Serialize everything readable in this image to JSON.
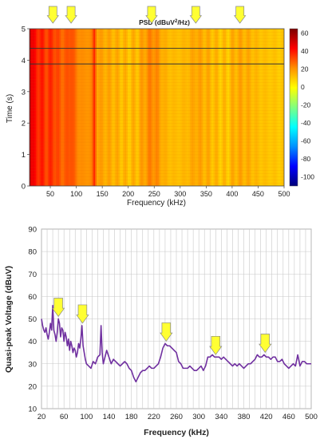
{
  "chart_data": [
    {
      "type": "heatmap",
      "title": "PSD (dBuV²/Hz)",
      "title_main": "PSD (dBuV",
      "title_sup": "2",
      "title_tail": "/Hz)",
      "xlabel": "Frequency (kHz)",
      "ylabel": "Time (s)",
      "xlim": [
        10,
        500
      ],
      "ylim": [
        0,
        5
      ],
      "x_ticks": [
        50,
        100,
        150,
        200,
        250,
        300,
        350,
        400,
        450,
        500
      ],
      "y_ticks": [
        0,
        1,
        2,
        3,
        4,
        5
      ],
      "colorbar": {
        "range": [
          -110,
          65
        ],
        "ticks": [
          60,
          40,
          20,
          0,
          -20,
          -40,
          -60,
          -80,
          -100
        ],
        "colors": [
          "#00007a",
          "#0000ff",
          "#0090ff",
          "#00ffff",
          "#80ff80",
          "#ffff00",
          "#ff9000",
          "#ff0000",
          "#7a0000"
        ]
      },
      "horizontal_lines": [
        4.38,
        3.88
      ],
      "arrows_x": [
        55,
        90,
        245,
        330,
        415
      ],
      "spectrum_profile_x": [
        10,
        15,
        20,
        30,
        45,
        55,
        65,
        80,
        90,
        100,
        115,
        130,
        135,
        140,
        160,
        180,
        200,
        220,
        235,
        245,
        255,
        270,
        290,
        310,
        330,
        350,
        370,
        390,
        410,
        430,
        450,
        470,
        500
      ],
      "spectrum_profile_level": [
        60,
        45,
        40,
        38,
        34,
        36,
        30,
        28,
        33,
        24,
        20,
        22,
        38,
        18,
        16,
        14,
        12,
        14,
        20,
        23,
        21,
        14,
        12,
        13,
        17,
        15,
        12,
        11,
        16,
        15,
        12,
        11,
        10
      ]
    },
    {
      "type": "line",
      "xlabel": "Frequency (kHz)",
      "ylabel": "Quasi-peak Voltage (dBuV)",
      "xlim": [
        20,
        500
      ],
      "ylim": [
        10,
        90
      ],
      "x_ticks": [
        20,
        60,
        100,
        140,
        180,
        220,
        260,
        300,
        340,
        380,
        420,
        460,
        500
      ],
      "y_ticks": [
        10,
        20,
        30,
        40,
        50,
        60,
        70,
        80,
        90
      ],
      "arrows_x": [
        50,
        93,
        242,
        330,
        418
      ],
      "series": [
        {
          "color": "#7030a0",
          "x": [
            20,
            22,
            24,
            26,
            28,
            30,
            32,
            34,
            36,
            38,
            40,
            42,
            44,
            46,
            48,
            50,
            52,
            54,
            56,
            58,
            60,
            62,
            64,
            66,
            68,
            70,
            72,
            74,
            76,
            78,
            80,
            82,
            84,
            86,
            88,
            90,
            92,
            94,
            96,
            98,
            100,
            104,
            108,
            112,
            116,
            120,
            124,
            126,
            128,
            130,
            132,
            136,
            140,
            144,
            148,
            152,
            156,
            160,
            164,
            168,
            172,
            176,
            180,
            184,
            188,
            192,
            196,
            200,
            204,
            208,
            212,
            216,
            220,
            224,
            228,
            232,
            236,
            240,
            244,
            248,
            252,
            256,
            260,
            264,
            268,
            272,
            276,
            280,
            284,
            288,
            292,
            296,
            300,
            304,
            308,
            312,
            316,
            320,
            324,
            328,
            332,
            336,
            340,
            344,
            348,
            352,
            356,
            360,
            364,
            368,
            372,
            376,
            380,
            384,
            388,
            392,
            396,
            400,
            404,
            408,
            412,
            416,
            420,
            424,
            428,
            432,
            436,
            440,
            444,
            448,
            452,
            456,
            460,
            464,
            468,
            472,
            476,
            480,
            484,
            488,
            492,
            496,
            500
          ],
          "y": [
            50,
            47,
            45,
            44,
            46,
            43,
            41,
            44,
            48,
            45,
            56,
            45,
            43,
            40,
            44,
            50,
            48,
            42,
            46,
            45,
            40,
            44,
            42,
            38,
            41,
            36,
            40,
            38,
            35,
            37,
            36,
            33,
            35,
            39,
            37,
            41,
            47,
            38,
            35,
            32,
            30,
            29,
            28,
            31,
            30,
            33,
            34,
            47,
            35,
            30,
            32,
            36,
            33,
            30,
            32,
            31,
            30,
            29,
            30,
            31,
            30,
            28,
            27,
            24,
            22,
            24,
            26,
            27,
            27,
            28,
            29,
            28,
            28,
            29,
            30,
            33,
            37,
            39,
            38,
            38,
            37,
            36,
            35,
            31,
            30,
            28,
            28,
            28,
            29,
            28,
            27,
            27,
            28,
            29,
            27,
            29,
            33,
            33,
            34,
            33,
            33,
            33,
            32,
            33,
            32,
            31,
            30,
            29,
            30,
            29,
            30,
            29,
            28,
            29,
            30,
            30,
            31,
            32,
            34,
            33,
            33,
            34,
            33,
            33,
            32,
            33,
            33,
            31,
            31,
            32,
            30,
            29,
            28,
            29,
            30,
            29,
            34,
            29,
            31,
            31,
            30,
            30,
            30
          ]
        }
      ]
    }
  ]
}
